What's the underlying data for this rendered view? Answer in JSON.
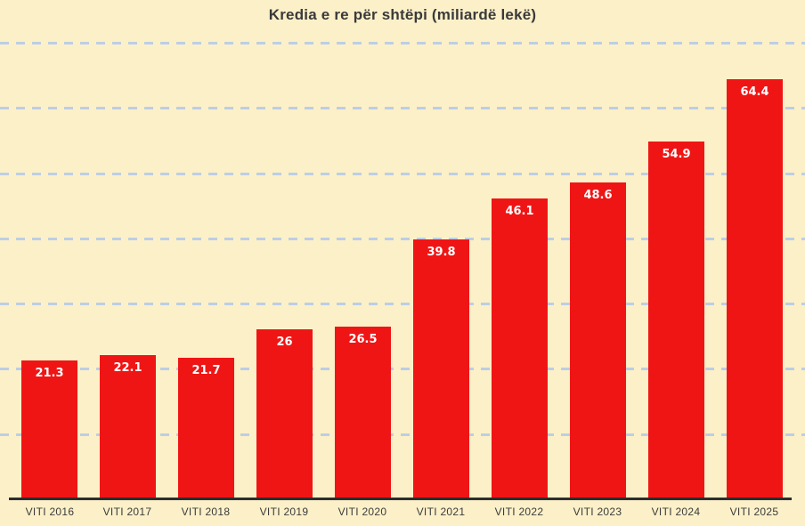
{
  "chart_data": {
    "type": "bar",
    "title": "Kredia e re për shtëpi (miliardë lekë)",
    "categories": [
      "VITI 2016",
      "VITI 2017",
      "VITI 2018",
      "VITI 2019",
      "VITI 2020",
      "VITI 2021",
      "VITI 2022",
      "VITI 2023",
      "VITI 2024",
      "VITI 2025"
    ],
    "values": [
      21.3,
      22.1,
      21.7,
      26,
      26.5,
      39.8,
      46.1,
      48.6,
      54.9,
      64.4
    ],
    "value_labels": [
      "21.3",
      "22.1",
      "21.7",
      "26",
      "26.5",
      "39.8",
      "46.1",
      "48.6",
      "54.9",
      "64.4"
    ],
    "xlabel": "",
    "ylabel": "",
    "ylim": [
      0,
      72.5
    ],
    "grid": true,
    "grid_step": 10,
    "grid_values": [
      10,
      20,
      30,
      40,
      50,
      60,
      70
    ],
    "y_tick_labels_shown": false,
    "legend": false,
    "value_labels_position": "inside-top"
  },
  "colors": {
    "background": "#FCF0C8",
    "bar": "#F01515",
    "gridline": "#BCCEE6",
    "axis_line": "#2D2D2D",
    "title_text": "#3A3A3A",
    "tick_text": "#3B3B3B",
    "value_text": "#FFFFFF"
  }
}
